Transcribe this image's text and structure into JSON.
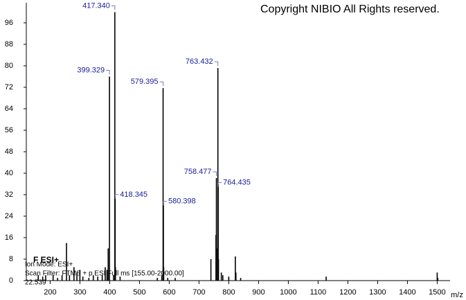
{
  "chart_data": {
    "type": "bar",
    "copyright": "Copyright NIBIO All Rights reserved.",
    "mode_title": "F ESI+",
    "info_lines": [
      "Ion Mode: ESI+",
      "Scan Filter: FTMS + p ESI Full ms [155.00-2000.00]",
      "22.539"
    ],
    "xlabel": "m/z",
    "x": [
      160,
      175,
      185,
      210,
      225,
      240,
      255,
      265,
      280,
      290,
      300,
      310,
      330,
      345,
      360,
      375,
      385,
      391,
      395,
      399.329,
      413,
      417.34,
      418.345,
      419.35,
      435,
      560,
      575,
      579.395,
      580.398,
      581.4,
      595,
      620,
      740,
      757,
      758.477,
      759.48,
      763.432,
      764.435,
      765.44,
      775,
      780,
      800,
      822,
      824,
      840,
      1127,
      1500,
      1502
    ],
    "values": [
      2,
      1.5,
      2,
      2,
      1,
      2,
      14,
      2,
      5,
      3,
      4,
      1.5,
      1,
      2,
      1.5,
      2,
      5,
      4,
      12,
      76,
      2,
      100,
      31.5,
      5,
      1.5,
      1,
      2,
      71.7,
      29,
      5,
      1,
      1,
      8,
      17,
      38.2,
      12,
      79.2,
      36,
      8,
      3,
      2,
      1.5,
      9,
      3,
      1,
      1.5,
      3,
      1
    ],
    "peak_labels": [
      null,
      null,
      null,
      null,
      null,
      null,
      null,
      null,
      null,
      null,
      null,
      null,
      null,
      null,
      null,
      null,
      null,
      null,
      null,
      "399.329",
      null,
      "417.340",
      "418.345",
      null,
      null,
      null,
      null,
      "579.395",
      "580.398",
      null,
      null,
      null,
      null,
      null,
      "758.477",
      null,
      "763.432",
      "764.435",
      null,
      null,
      null,
      null,
      null,
      null,
      null,
      null,
      null,
      null
    ],
    "color": "#000000",
    "label_color": "#1a1a9c",
    "xlim": [
      120,
      1570
    ],
    "ylim": [
      0,
      101
    ],
    "xticks": [
      200,
      300,
      400,
      500,
      600,
      700,
      800,
      900,
      1000,
      1100,
      1200,
      1300,
      1400,
      1500
    ],
    "yticks": [
      0,
      8,
      16,
      24,
      32,
      40,
      48,
      56,
      64,
      72,
      80,
      88,
      96
    ]
  }
}
